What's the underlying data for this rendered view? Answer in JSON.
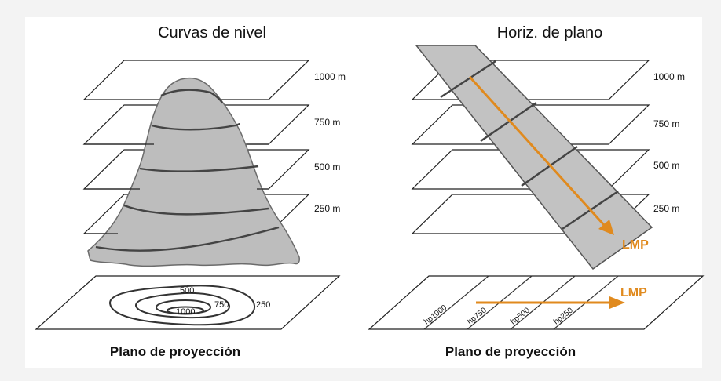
{
  "left_panel": {
    "title": "Curvas de nivel",
    "levels": [
      "1000 m",
      "750 m",
      "500 m",
      "250 m"
    ],
    "contour_labels": [
      "500",
      "750",
      "250",
      "1000"
    ],
    "footer": "Plano de proyección"
  },
  "right_panel": {
    "title": "Horiz. de plano",
    "levels": [
      "1000 m",
      "750 m",
      "500 m",
      "250 m"
    ],
    "lmp_label_top": "LMP",
    "lmp_label_bottom": "LMP",
    "hp_labels": [
      "hp1000",
      "hp750",
      "hp500",
      "hp250"
    ],
    "footer": "Plano de proyección"
  },
  "colors": {
    "accent": "#e08a1e",
    "mountain": "#bdbdbd",
    "strip": "#c2c2c2"
  }
}
